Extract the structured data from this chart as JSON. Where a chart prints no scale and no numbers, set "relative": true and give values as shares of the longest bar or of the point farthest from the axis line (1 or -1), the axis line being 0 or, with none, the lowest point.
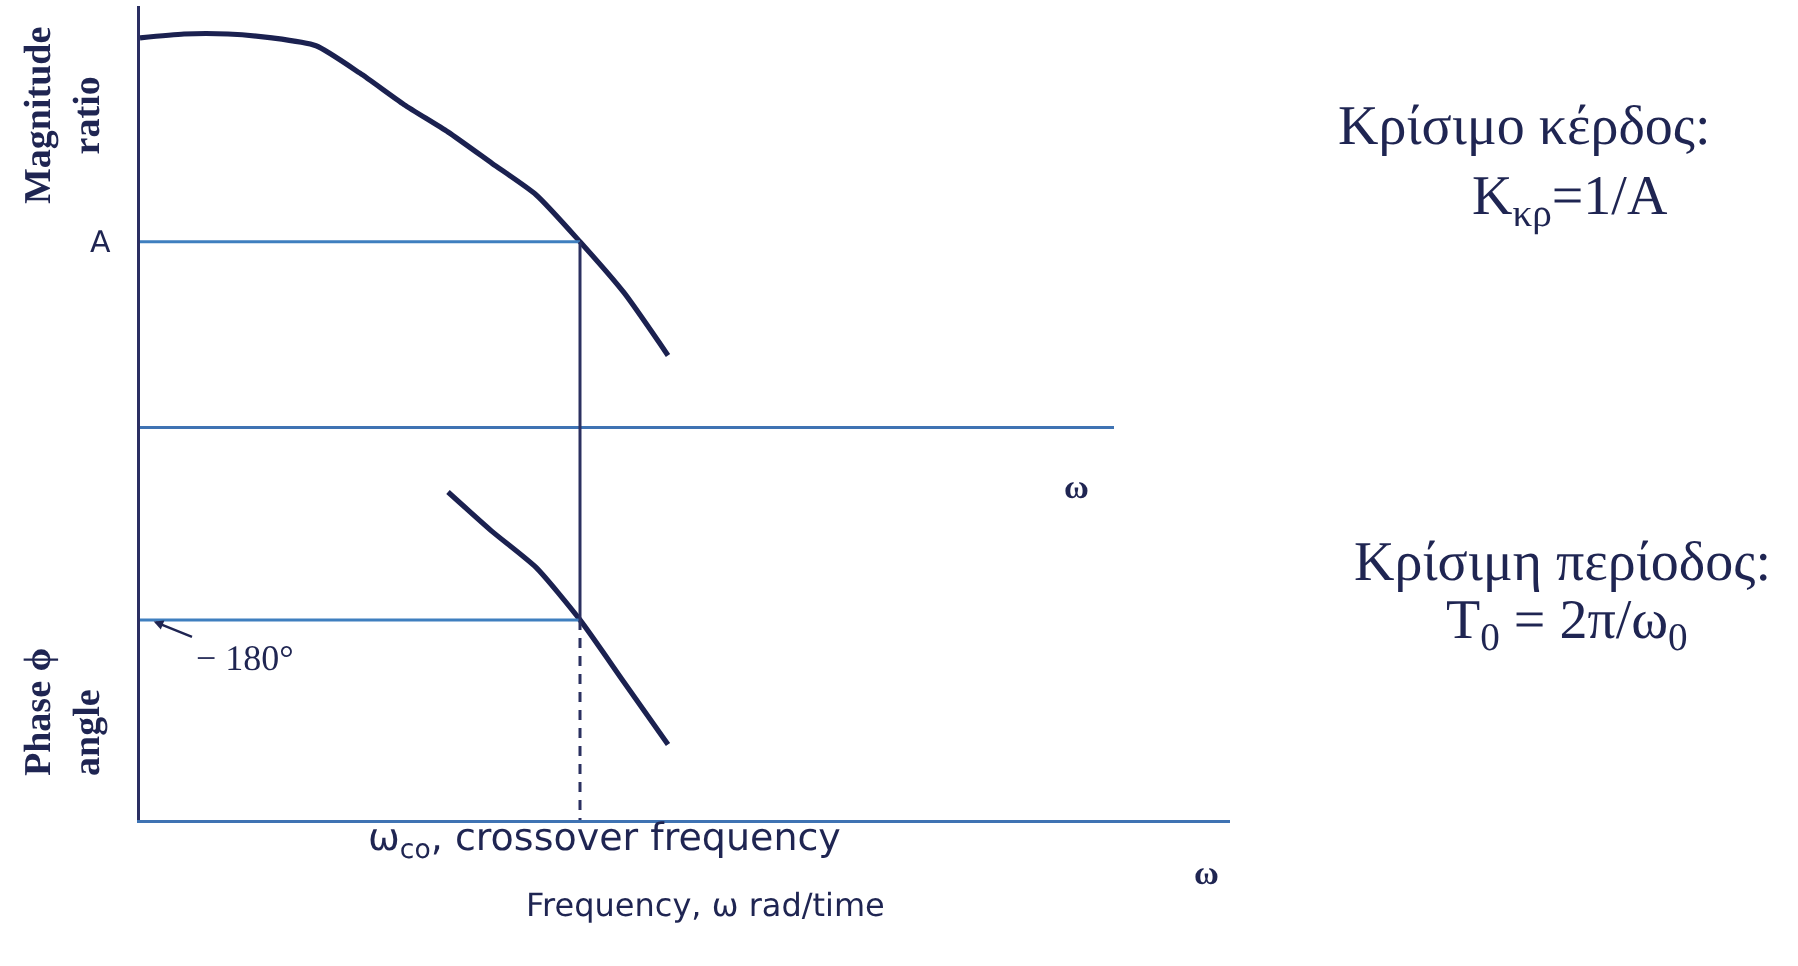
{
  "chart_data": [
    {
      "type": "line",
      "relative": true,
      "ylabel": "Magnitude\nratio",
      "xlabel": "ω",
      "categories": [
        null,
        null,
        null,
        null,
        null,
        null,
        null,
        null,
        null,
        null,
        null,
        null,
        null,
        null,
        null,
        null,
        null,
        null,
        null,
        null,
        null,
        null,
        null
      ],
      "color": "#1b2150",
      "values": [
        0.99,
        1,
        1,
        0.99,
        0.97,
        0.9,
        0.82,
        0.75,
        0.67,
        0.59,
        0.47,
        0.34,
        0.18,
        null,
        null,
        null,
        null,
        null,
        null,
        null,
        null,
        null,
        null
      ],
      "ref_lines": [
        {
          "axis": "y",
          "value": 0.47,
          "label": "A",
          "color": "#3f7fbf"
        }
      ],
      "annotations": [
        "Κρίσιμο κέρδος:",
        "K$_{κρ}$=1/A"
      ]
    },
    {
      "type": "line",
      "relative": true,
      "ylabel": "Phase ϕ\nangle",
      "xlabel": "Frequency, ω rad/time",
      "categories": [
        null,
        null,
        null,
        null,
        null,
        null,
        null,
        null,
        null,
        null,
        null,
        null,
        null,
        null,
        null,
        null,
        null,
        null,
        null,
        null,
        null,
        null,
        null,
        null,
        null
      ],
      "color": "#1b2150",
      "values": [
        null,
        null,
        null,
        null,
        null,
        null,
        null,
        1,
        0.88,
        0.77,
        0.61,
        0.42,
        0.23,
        null,
        null,
        null,
        null,
        null,
        null,
        null,
        null,
        null,
        null,
        null,
        null
      ],
      "ref_lines": [
        {
          "axis": "y",
          "value": 0.61,
          "label": "− 180°",
          "color": "#3f7fbf"
        }
      ],
      "annotations": [
        "ω$_{co}$, crossover frequency",
        "ω",
        "Κρίσιμη περίοδος:",
        "T$_{0}$ = 2π/ω$_{0}$"
      ]
    }
  ]
}
